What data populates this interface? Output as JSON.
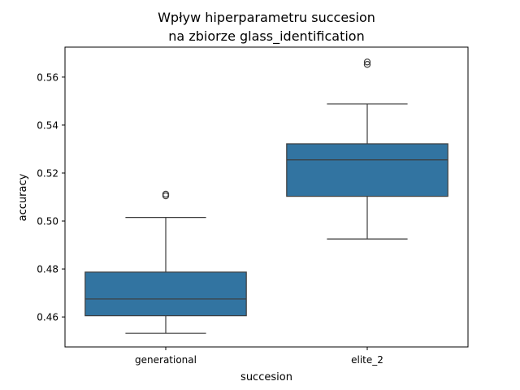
{
  "chart_data": {
    "type": "boxplot",
    "title_lines": [
      "Wpływ hiperparametru succesion",
      "na zbiorze glass_identification"
    ],
    "xlabel": "succesion",
    "ylabel": "accuracy",
    "ylim": [
      0.4475,
      0.5725
    ],
    "yticks": [
      0.46,
      0.48,
      0.5,
      0.52,
      0.54,
      0.56
    ],
    "ytick_labels": [
      "0.46",
      "0.48",
      "0.50",
      "0.52",
      "0.54",
      "0.56"
    ],
    "categories": [
      "generational",
      "elite_2"
    ],
    "boxes": [
      {
        "name": "generational",
        "whisker_low": 0.4532,
        "q1": 0.4605,
        "median": 0.4675,
        "q3": 0.4787,
        "whisker_high": 0.5015,
        "outliers": [
          0.5105,
          0.5112
        ]
      },
      {
        "name": "elite_2",
        "whisker_low": 0.4925,
        "q1": 0.5103,
        "median": 0.5255,
        "q3": 0.5322,
        "whisker_high": 0.5488,
        "outliers": [
          0.5653,
          0.5663
        ]
      }
    ],
    "box_color": "#3274a1",
    "line_color": "#3d3d3d",
    "grid": false
  }
}
